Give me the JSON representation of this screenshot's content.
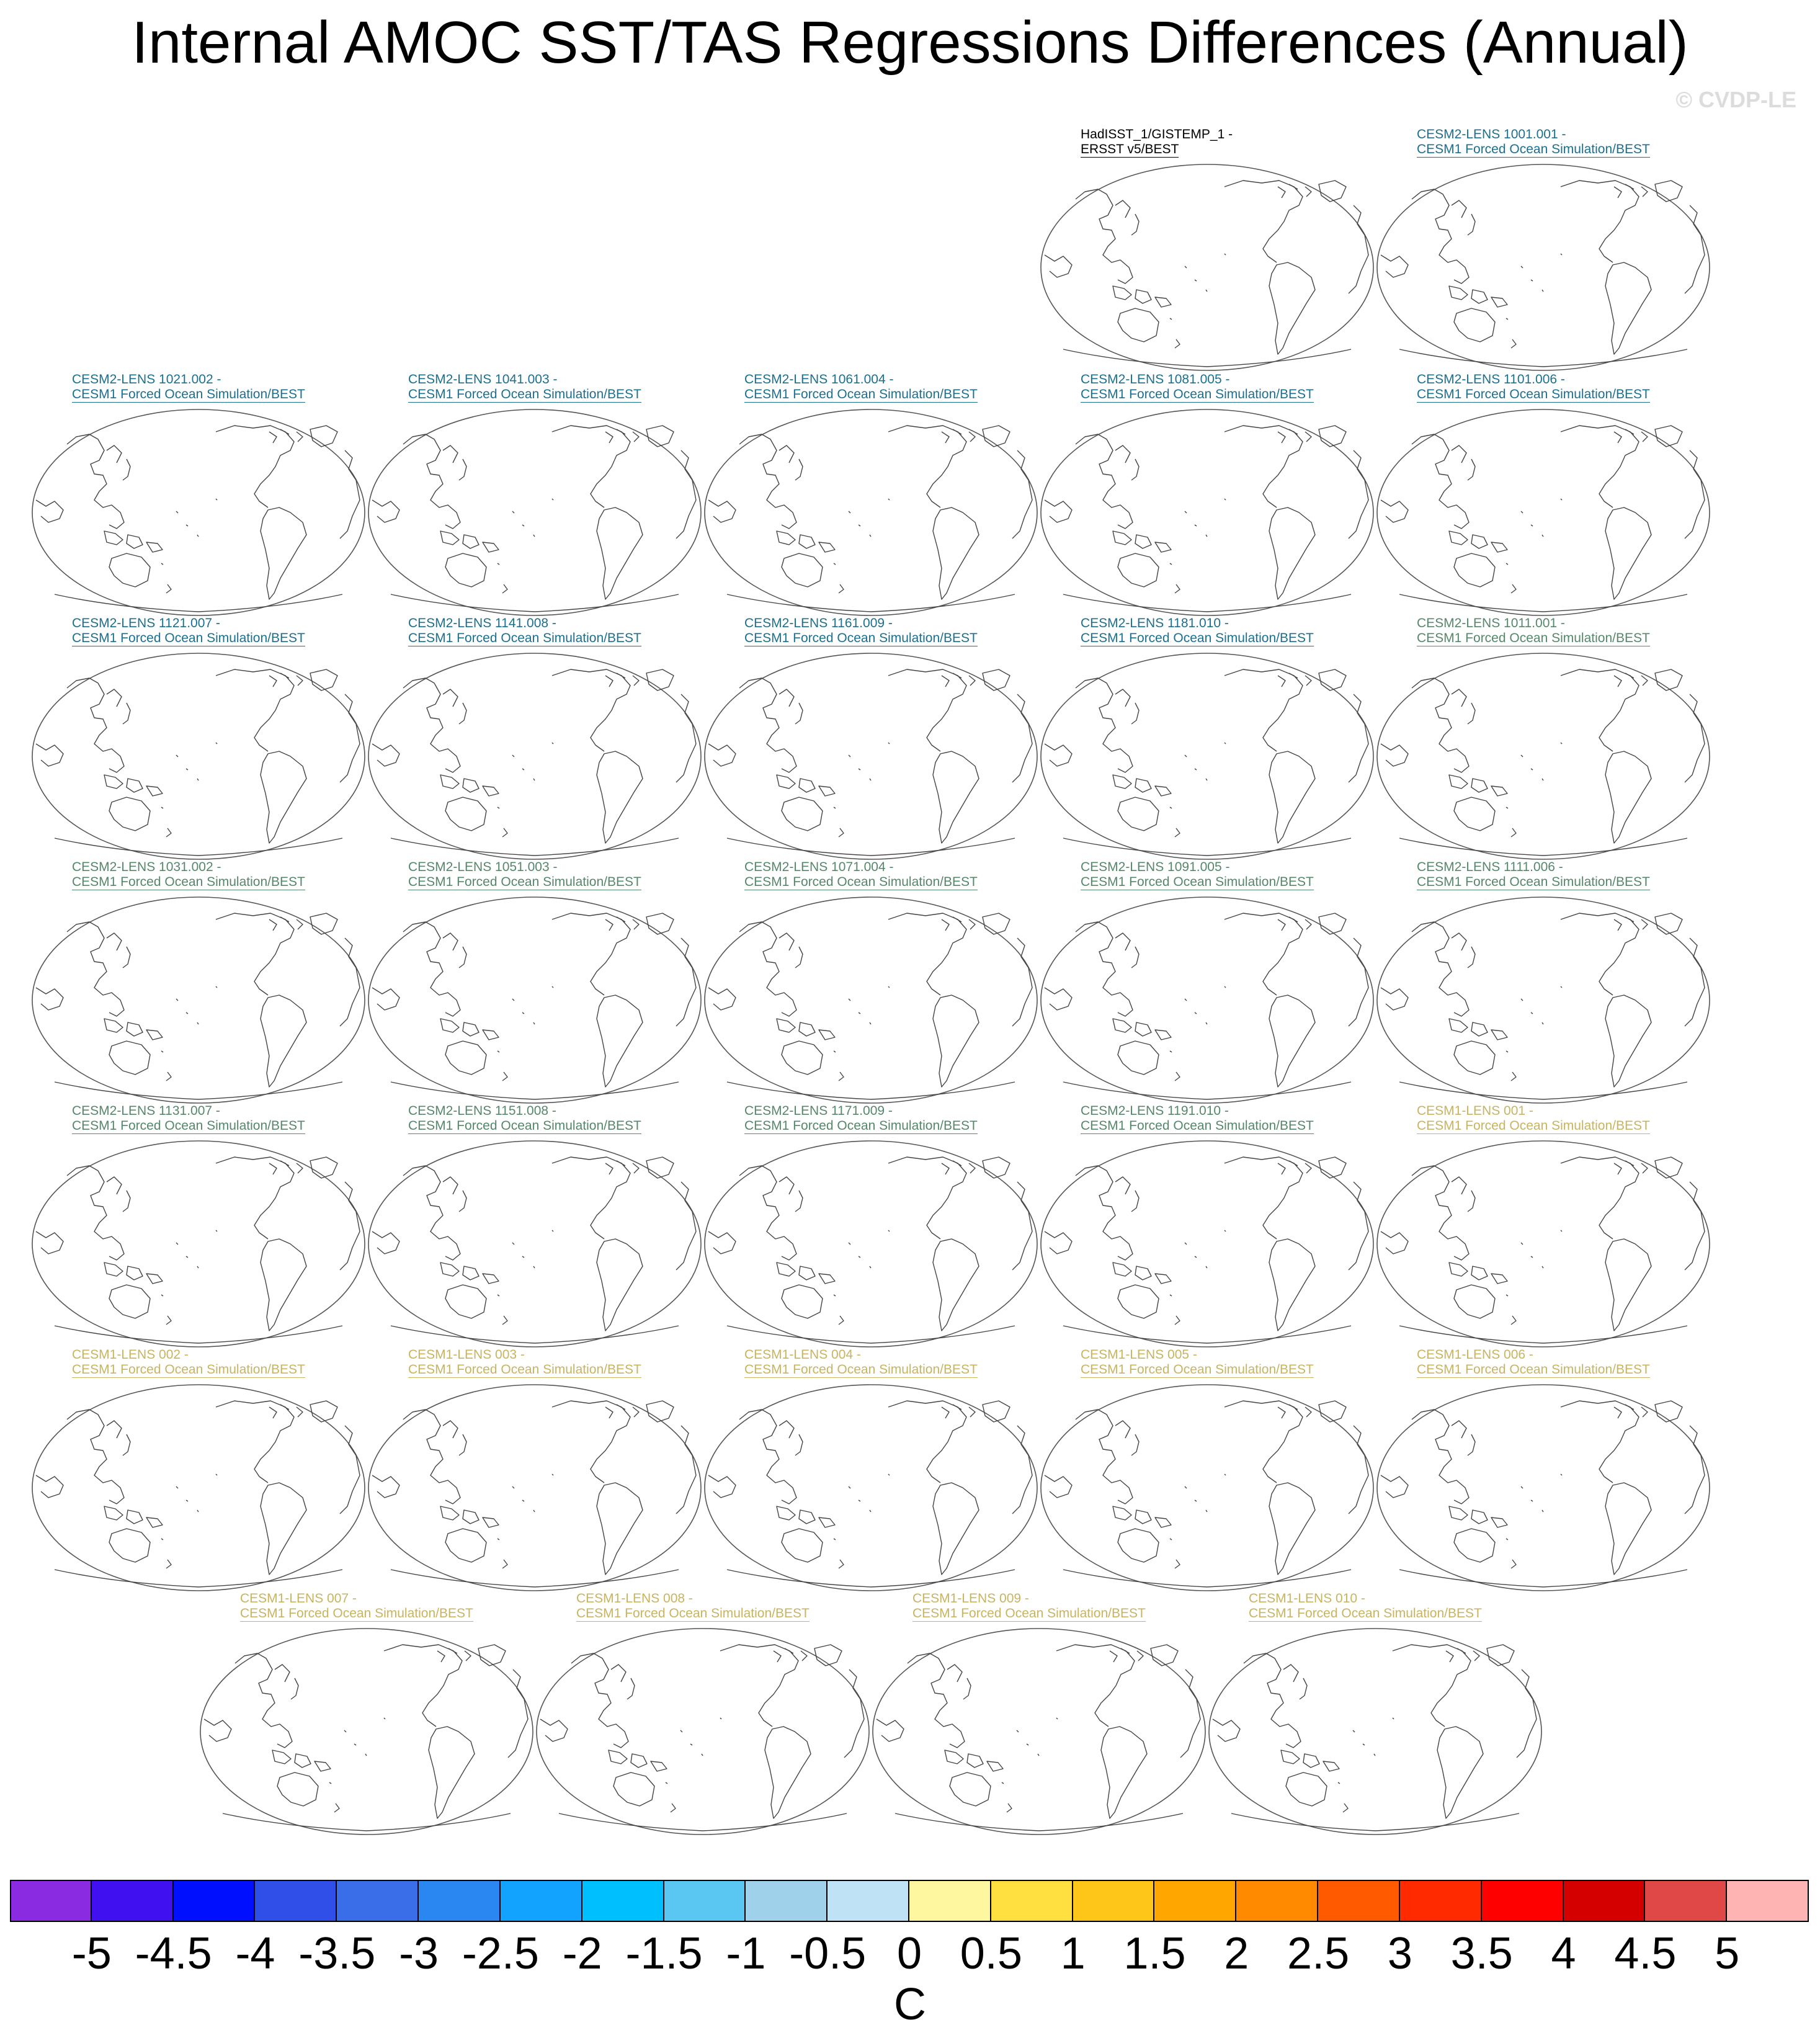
{
  "title": "Internal AMOC SST/TAS Regressions Differences (Annual)",
  "credit": "© CVDP-LE",
  "colors": {
    "observed": "#000000",
    "cesm2_first": "#1b6f8f",
    "cesm2_second": "#55876a",
    "cesm1": "#c8b460"
  },
  "panels": [
    {
      "line1": "HadISST_1/GISTEMP_1 -",
      "line2": "ERSST v5/BEST",
      "group": "observed"
    },
    {
      "line1": "CESM2-LENS 1001.001 -",
      "line2": "CESM1 Forced Ocean Simulation/BEST",
      "group": "cesm2_first"
    },
    {
      "line1": "CESM2-LENS 1021.002 -",
      "line2": "CESM1 Forced Ocean Simulation/BEST",
      "group": "cesm2_first"
    },
    {
      "line1": "CESM2-LENS 1041.003 -",
      "line2": "CESM1 Forced Ocean Simulation/BEST",
      "group": "cesm2_first"
    },
    {
      "line1": "CESM2-LENS 1061.004 -",
      "line2": "CESM1 Forced Ocean Simulation/BEST",
      "group": "cesm2_first"
    },
    {
      "line1": "CESM2-LENS 1081.005 -",
      "line2": "CESM1 Forced Ocean Simulation/BEST",
      "group": "cesm2_first"
    },
    {
      "line1": "CESM2-LENS 1101.006 -",
      "line2": "CESM1 Forced Ocean Simulation/BEST",
      "group": "cesm2_first"
    },
    {
      "line1": "CESM2-LENS 1121.007 -",
      "line2": "CESM1 Forced Ocean Simulation/BEST",
      "group": "cesm2_first"
    },
    {
      "line1": "CESM2-LENS 1141.008 -",
      "line2": "CESM1 Forced Ocean Simulation/BEST",
      "group": "cesm2_first"
    },
    {
      "line1": "CESM2-LENS 1161.009 -",
      "line2": "CESM1 Forced Ocean Simulation/BEST",
      "group": "cesm2_first"
    },
    {
      "line1": "CESM2-LENS 1181.010 -",
      "line2": "CESM1 Forced Ocean Simulation/BEST",
      "group": "cesm2_first"
    },
    {
      "line1": "CESM2-LENS 1011.001 -",
      "line2": "CESM1 Forced Ocean Simulation/BEST",
      "group": "cesm2_second"
    },
    {
      "line1": "CESM2-LENS 1031.002 -",
      "line2": "CESM1 Forced Ocean Simulation/BEST",
      "group": "cesm2_second"
    },
    {
      "line1": "CESM2-LENS 1051.003 -",
      "line2": "CESM1 Forced Ocean Simulation/BEST",
      "group": "cesm2_second"
    },
    {
      "line1": "CESM2-LENS 1071.004 -",
      "line2": "CESM1 Forced Ocean Simulation/BEST",
      "group": "cesm2_second"
    },
    {
      "line1": "CESM2-LENS 1091.005 -",
      "line2": "CESM1 Forced Ocean Simulation/BEST",
      "group": "cesm2_second"
    },
    {
      "line1": "CESM2-LENS 1111.006 -",
      "line2": "CESM1 Forced Ocean Simulation/BEST",
      "group": "cesm2_second"
    },
    {
      "line1": "CESM2-LENS 1131.007 -",
      "line2": "CESM1 Forced Ocean Simulation/BEST",
      "group": "cesm2_second"
    },
    {
      "line1": "CESM2-LENS 1151.008 -",
      "line2": "CESM1 Forced Ocean Simulation/BEST",
      "group": "cesm2_second"
    },
    {
      "line1": "CESM2-LENS 1171.009 -",
      "line2": "CESM1 Forced Ocean Simulation/BEST",
      "group": "cesm2_second"
    },
    {
      "line1": "CESM2-LENS 1191.010 -",
      "line2": "CESM1 Forced Ocean Simulation/BEST",
      "group": "cesm2_second"
    },
    {
      "line1": "CESM1-LENS 001 -",
      "line2": "CESM1 Forced Ocean Simulation/BEST",
      "group": "cesm1"
    },
    {
      "line1": "CESM1-LENS 002 -",
      "line2": "CESM1 Forced Ocean Simulation/BEST",
      "group": "cesm1"
    },
    {
      "line1": "CESM1-LENS 003 -",
      "line2": "CESM1 Forced Ocean Simulation/BEST",
      "group": "cesm1"
    },
    {
      "line1": "CESM1-LENS 004 -",
      "line2": "CESM1 Forced Ocean Simulation/BEST",
      "group": "cesm1"
    },
    {
      "line1": "CESM1-LENS 005 -",
      "line2": "CESM1 Forced Ocean Simulation/BEST",
      "group": "cesm1"
    },
    {
      "line1": "CESM1-LENS 006 -",
      "line2": "CESM1 Forced Ocean Simulation/BEST",
      "group": "cesm1"
    },
    {
      "line1": "CESM1-LENS 007 -",
      "line2": "CESM1 Forced Ocean Simulation/BEST",
      "group": "cesm1"
    },
    {
      "line1": "CESM1-LENS 008 -",
      "line2": "CESM1 Forced Ocean Simulation/BEST",
      "group": "cesm1"
    },
    {
      "line1": "CESM1-LENS 009 -",
      "line2": "CESM1 Forced Ocean Simulation/BEST",
      "group": "cesm1"
    },
    {
      "line1": "CESM1-LENS 010 -",
      "line2": "CESM1 Forced Ocean Simulation/BEST",
      "group": "cesm1"
    }
  ],
  "colorbar": {
    "colors": [
      "#8a2be2",
      "#4010f0",
      "#0010ff",
      "#2f4fe8",
      "#3a6ee8",
      "#2a86f0",
      "#12a2ff",
      "#00bfff",
      "#5ac7f2",
      "#9fd2ea",
      "#bfe3f5",
      "#fff7a0",
      "#ffe040",
      "#ffc61a",
      "#ffa600",
      "#ff8a00",
      "#ff5a00",
      "#ff2a00",
      "#ff0000",
      "#d40000",
      "#e04848",
      "#ffb4b4"
    ],
    "ticks": [
      "-5",
      "-4.5",
      "-4",
      "-3.5",
      "-3",
      "-2.5",
      "-2",
      "-1.5",
      "-1",
      "-0.5",
      "0",
      "0.5",
      "1",
      "1.5",
      "2",
      "2.5",
      "3",
      "3.5",
      "4",
      "4.5",
      "5"
    ],
    "unit": "C"
  }
}
